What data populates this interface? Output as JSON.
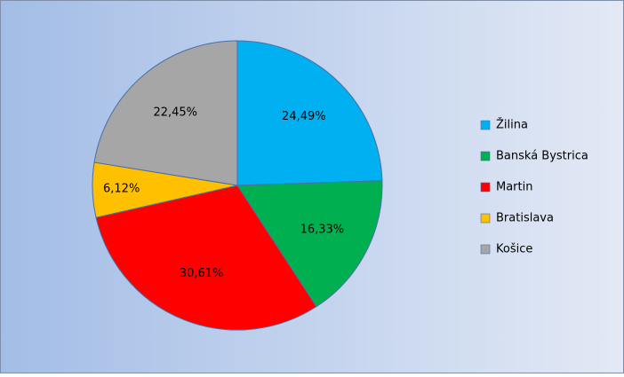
{
  "chart_data": {
    "type": "pie",
    "categories": [
      "Žilina",
      "Banská Bystrica",
      "Martin",
      "Bratislava",
      "Košice"
    ],
    "values": [
      24.49,
      16.33,
      30.61,
      6.12,
      22.45
    ],
    "value_labels": [
      "24,49%",
      "16,33%",
      "30,61%",
      "6,12%",
      "22,45%"
    ],
    "colors": [
      "#00b0f0",
      "#00b050",
      "#ff0000",
      "#ffc000",
      "#a6a6a6"
    ],
    "legend": "right"
  }
}
